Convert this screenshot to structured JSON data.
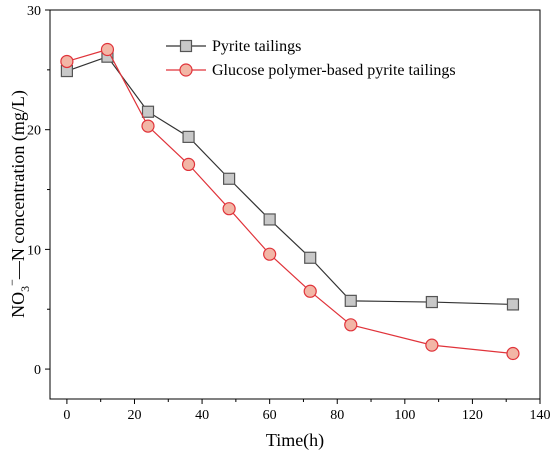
{
  "chart_data": {
    "type": "line",
    "title": "",
    "xlabel": "Time(h)",
    "ylabel": "NO3−—N  concentration  (mg/L)",
    "ylabel_parts": {
      "prefix": "NO",
      "subscript": "3",
      "superscript": "−",
      "rest": "—N  concentration  (mg/L)"
    },
    "xlim": [
      -5,
      140
    ],
    "ylim": [
      -2.5,
      30
    ],
    "xticks": [
      0,
      20,
      40,
      60,
      80,
      100,
      120,
      140
    ],
    "yticks": [
      0,
      10,
      20,
      30
    ],
    "grid": false,
    "legend_position": "top-right",
    "series": [
      {
        "name": "Pyrite tailings",
        "marker": "square",
        "line_color": "#333333",
        "marker_fill": "#c8c8c8",
        "marker_stroke": "#555555",
        "x": [
          0,
          12,
          24,
          36,
          48,
          60,
          72,
          84,
          108,
          132
        ],
        "y": [
          24.9,
          26.1,
          21.5,
          19.4,
          15.9,
          12.5,
          9.3,
          5.7,
          5.6,
          5.4
        ]
      },
      {
        "name": "Glucose polymer-based pyrite tailings",
        "marker": "circle",
        "line_color": "#e0333a",
        "marker_fill": "#f2b6a6",
        "marker_stroke": "#e0333a",
        "x": [
          0,
          12,
          24,
          36,
          48,
          60,
          72,
          84,
          108,
          132
        ],
        "y": [
          25.7,
          26.7,
          20.3,
          17.1,
          13.4,
          9.6,
          6.5,
          3.7,
          2.0,
          1.3
        ]
      }
    ]
  }
}
